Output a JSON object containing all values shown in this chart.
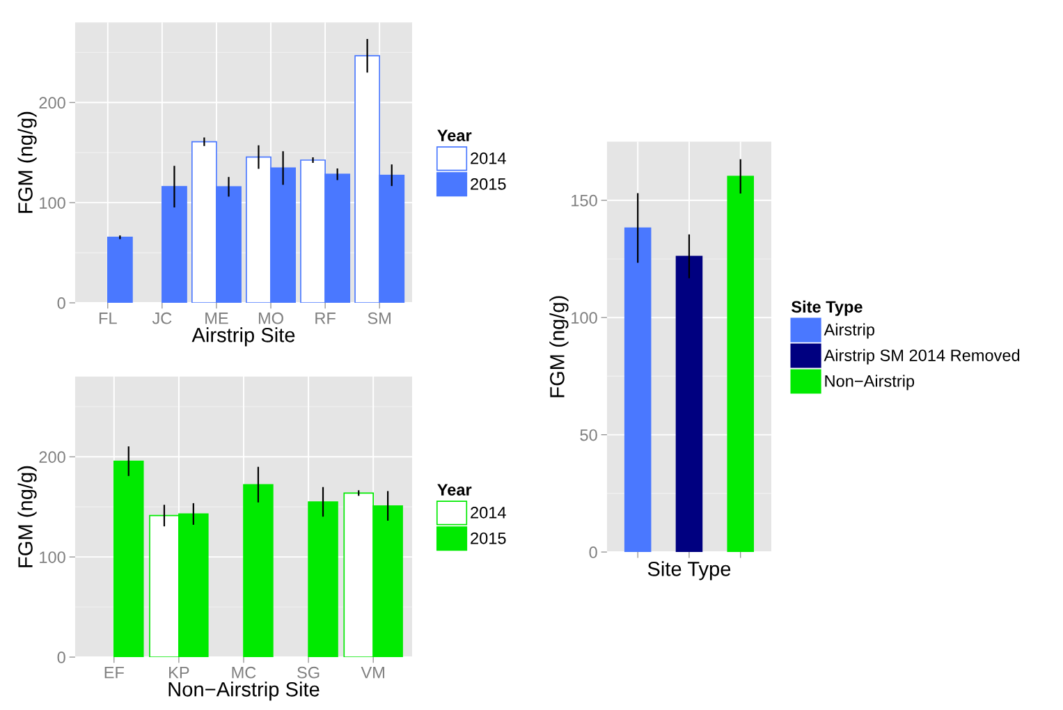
{
  "chart_data": [
    {
      "type": "bar",
      "xlabel": "Airstrip Site",
      "ylabel": "FGM (ng/g)",
      "legend_title": "Year",
      "legend": "right",
      "grid": true,
      "categories": [
        "FL",
        "JC",
        "ME",
        "MO",
        "RF",
        "SM"
      ],
      "ylim": [
        0,
        280
      ],
      "yticks": [
        0,
        100,
        200
      ],
      "series": [
        {
          "name": "2014",
          "color": "#ffffff",
          "values": [
            0,
            0,
            160.8,
            145.5,
            142.5,
            246.6
          ],
          "errors": [
            null,
            null,
            3.5,
            11,
            2,
            16
          ]
        },
        {
          "name": "2015",
          "color": "#4a78ff",
          "values": [
            65.4,
            116,
            115.8,
            134.6,
            128.3,
            127.4
          ],
          "errors": [
            1,
            20,
            9,
            16,
            5,
            10
          ]
        }
      ]
    },
    {
      "type": "bar",
      "xlabel": "Non−Airstrip Site",
      "ylabel": "FGM (ng/g)",
      "legend_title": "Year",
      "legend": "right",
      "grid": true,
      "categories": [
        "EF",
        "KP",
        "MC",
        "SG",
        "VM"
      ],
      "ylim": [
        0,
        280
      ],
      "yticks": [
        0,
        100,
        200
      ],
      "series": [
        {
          "name": "2014",
          "color": "#ffffff",
          "values": [
            0,
            141.3,
            0,
            0,
            163.8
          ],
          "errors": [
            null,
            10,
            null,
            null,
            2
          ]
        },
        {
          "name": "2015",
          "color": "#00ea00",
          "values": [
            195.6,
            142.9,
            172.2,
            155,
            151
          ],
          "errors": [
            14,
            10,
            17,
            14,
            14
          ]
        }
      ]
    },
    {
      "type": "bar",
      "xlabel": "Site Type",
      "ylabel": "FGM (ng/g)",
      "legend_title": "Site Type",
      "legend": "right",
      "grid": true,
      "stacked": true,
      "categories": [
        null,
        null,
        null
      ],
      "ylim": [
        0,
        175
      ],
      "yticks": [
        0,
        50,
        100,
        150
      ],
      "series": [
        {
          "name": "Airstrip",
          "color": "#4a78ff",
          "values": [
            138.2,
            null,
            null
          ],
          "errors": [
            14.5,
            null,
            null
          ]
        },
        {
          "name": "Airstrip SM 2014 Removed",
          "color": "#000080",
          "values": [
            null,
            126.1,
            null
          ],
          "errors": [
            null,
            9,
            null
          ]
        },
        {
          "name": "Non−Airstrip",
          "color": "#00ea00",
          "values": [
            null,
            null,
            160.2
          ],
          "errors": [
            null,
            null,
            7
          ]
        }
      ]
    }
  ]
}
